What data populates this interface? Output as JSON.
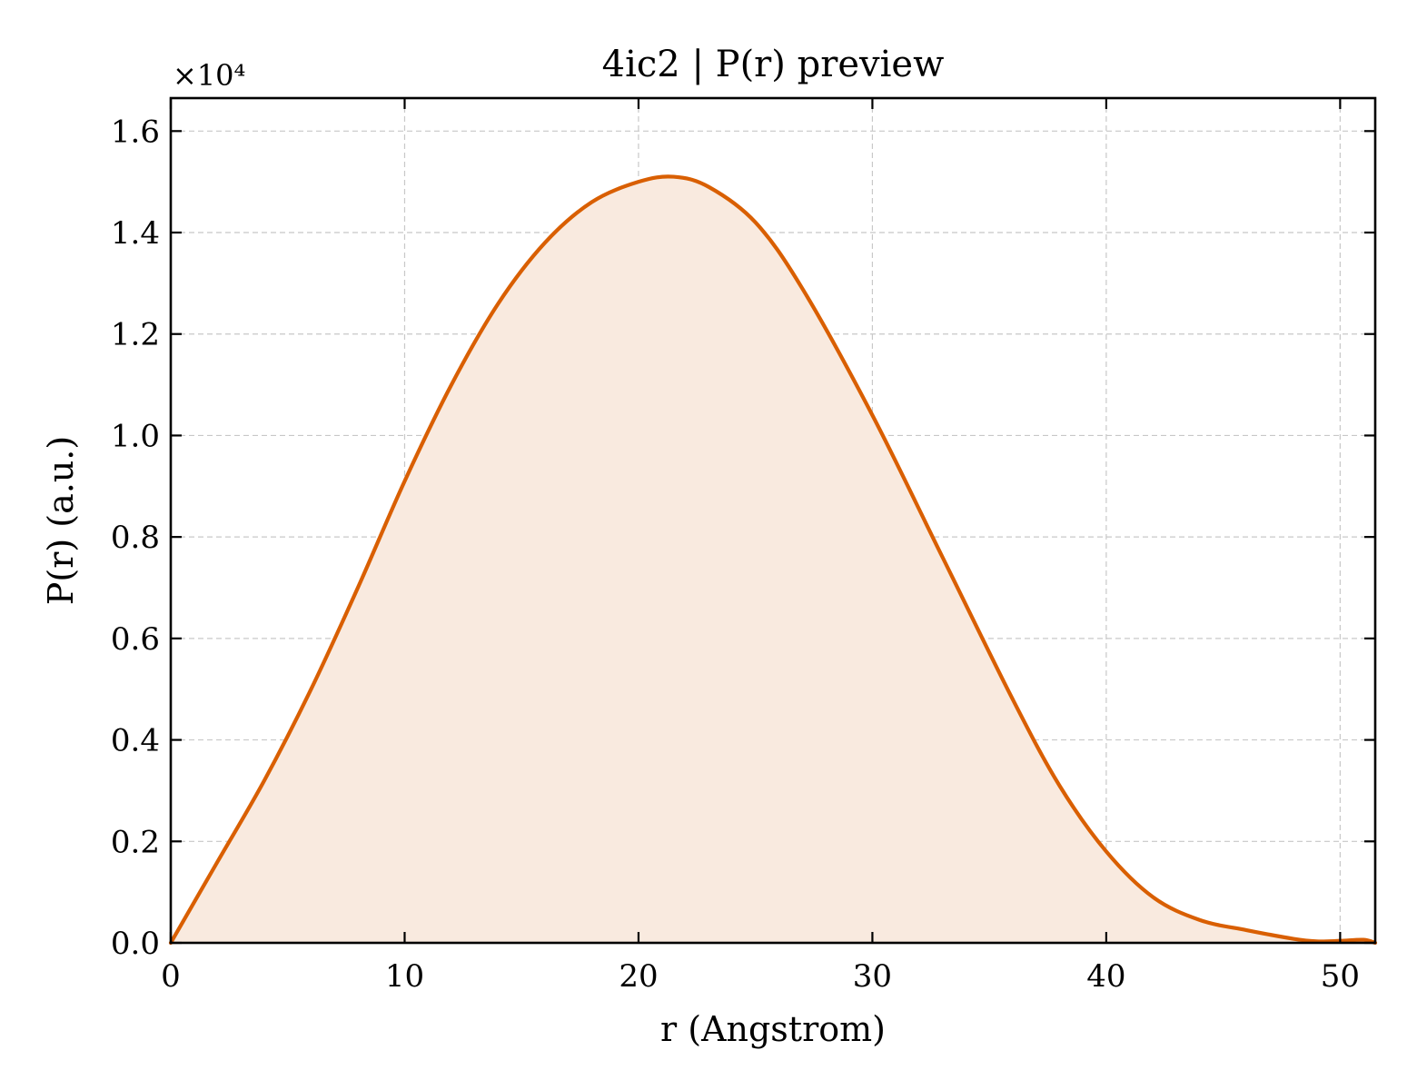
{
  "chart_data": {
    "type": "area",
    "title": "4ic2 | P(r) preview",
    "xlabel": "r (Angstrom)",
    "ylabel": "P(r) (a.u.)",
    "y_offset_label": "×10⁴",
    "xlim": [
      0,
      51.5
    ],
    "ylim": [
      0,
      1.665
    ],
    "grid": true,
    "legend": "none",
    "x_ticks": [
      0,
      10,
      20,
      30,
      40,
      50
    ],
    "x_tick_labels": [
      "0",
      "10",
      "20",
      "30",
      "40",
      "50"
    ],
    "y_ticks": [
      0,
      0.2,
      0.4,
      0.6,
      0.8,
      1.0,
      1.2,
      1.4,
      1.6
    ],
    "y_tick_labels": [
      "0.0",
      "0.2",
      "0.4",
      "0.6",
      "0.8",
      "1.0",
      "1.2",
      "1.4",
      "1.6"
    ],
    "colors": {
      "line": "#d95f02",
      "fill": "#f9eadf",
      "axes": "#000000",
      "grid": "#c8c8c8"
    },
    "series": [
      {
        "x": [
          0,
          2,
          4,
          6,
          8,
          10,
          12,
          14,
          16,
          18,
          20,
          21.5,
          23,
          25,
          27,
          30,
          33,
          36,
          38,
          40,
          42,
          44,
          46,
          48,
          49,
          50,
          51,
          51.5
        ],
        "y": [
          0,
          0.16,
          0.32,
          0.5,
          0.7,
          0.91,
          1.1,
          1.26,
          1.38,
          1.46,
          1.5,
          1.51,
          1.49,
          1.42,
          1.29,
          1.04,
          0.76,
          0.48,
          0.31,
          0.18,
          0.09,
          0.045,
          0.025,
          0.008,
          0.003,
          0.004,
          0.006,
          0.0
        ]
      }
    ]
  }
}
